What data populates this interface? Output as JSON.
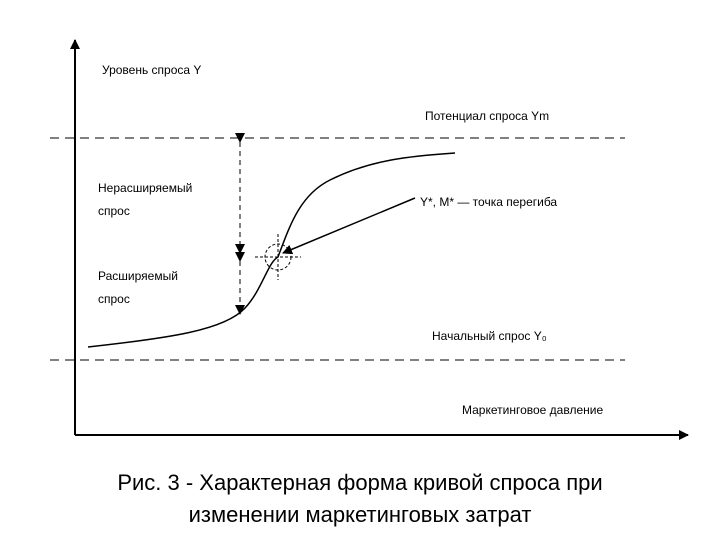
{
  "axes": {
    "y_label": "Уровень спроса Y",
    "x_label": "Маркетинговое давление"
  },
  "levels": {
    "potential": "Потенциал спроса Ym",
    "initial": "Начальный спрос Y₀"
  },
  "zones": {
    "non_expandable": [
      "Нерасширяемый",
      "спрос"
    ],
    "expandable": [
      "Расширяемый",
      "спрос"
    ]
  },
  "inflection": "Y*, M* — точка перегиба",
  "caption": [
    "Рис. 3 - Характерная форма кривой спроса при",
    "изменении маркетинговых затрат"
  ]
}
